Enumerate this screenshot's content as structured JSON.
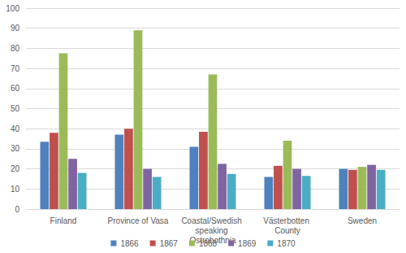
{
  "chart_data": {
    "type": "bar",
    "categories": [
      "Finland",
      "Province of Vasa",
      "Coastal/Swedish speaking Ostrobothnia",
      "Västerbotten County",
      "Sweden"
    ],
    "series": [
      {
        "name": "1866",
        "color": "#4f81bd",
        "values": [
          33.5,
          37,
          31,
          16,
          20
        ]
      },
      {
        "name": "1867",
        "color": "#c0504d",
        "values": [
          38,
          40,
          38.5,
          21.5,
          19.5
        ]
      },
      {
        "name": "1868",
        "color": "#9bbb59",
        "values": [
          77.5,
          89,
          67,
          34,
          21
        ]
      },
      {
        "name": "1869",
        "color": "#8064a2",
        "values": [
          25,
          20,
          22.5,
          20,
          22
        ]
      },
      {
        "name": "1870",
        "color": "#4bacc6",
        "values": [
          18,
          16,
          17.5,
          16.5,
          19.5
        ]
      }
    ],
    "ylim": [
      0,
      100
    ],
    "yticks": [
      0,
      10,
      20,
      30,
      40,
      50,
      60,
      70,
      80,
      90,
      100
    ],
    "grid": true,
    "legend": "bottom"
  }
}
